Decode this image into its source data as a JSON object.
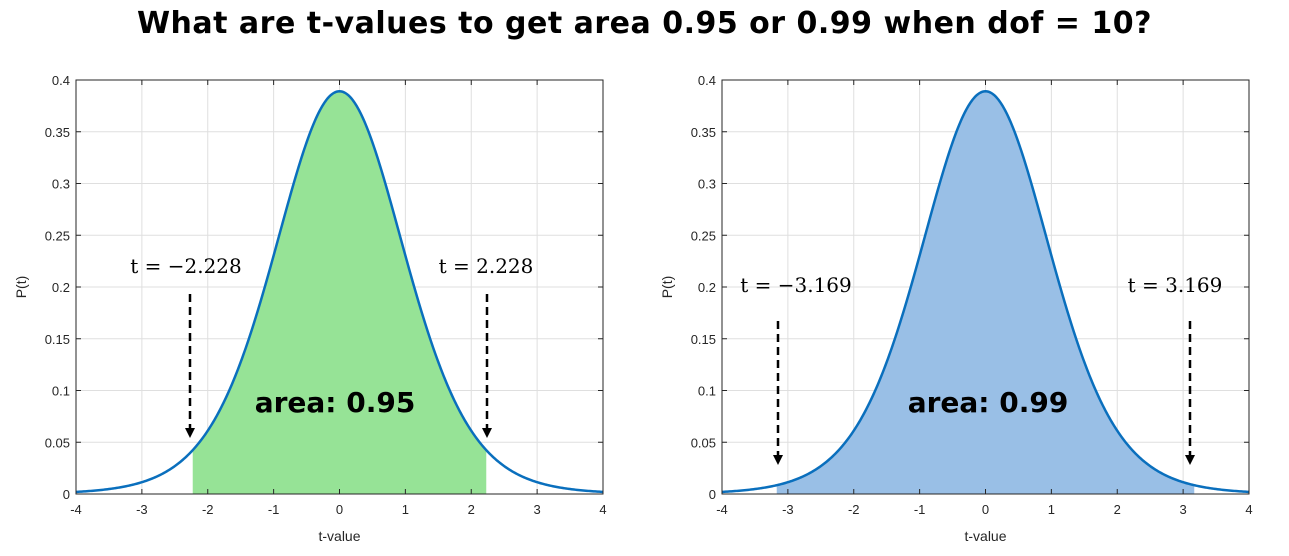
{
  "title": "What are t-values to get area 0.95 or 0.99 when dof = 10?",
  "chart_data": [
    {
      "type": "area",
      "dof": 10,
      "xlabel": "t-value",
      "ylabel": "P(t)",
      "xlim": [
        -4,
        4
      ],
      "ylim": [
        0,
        0.4
      ],
      "xticks": [
        -4,
        -3,
        -2,
        -1,
        0,
        1,
        2,
        3,
        4
      ],
      "yticks": [
        0,
        0.05,
        0.1,
        0.15,
        0.2,
        0.25,
        0.3,
        0.35,
        0.4
      ],
      "grid": true,
      "shade_range": [
        -2.228,
        2.228
      ],
      "shade_color": "#96e396",
      "curve_color": "#0a6fbd",
      "area_label": "area: 0.95",
      "left_annotation": "t = −2.228",
      "right_annotation": "t = 2.228"
    },
    {
      "type": "area",
      "dof": 10,
      "xlabel": "t-value",
      "ylabel": "P(t)",
      "xlim": [
        -4,
        4
      ],
      "ylim": [
        0,
        0.4
      ],
      "xticks": [
        -4,
        -3,
        -2,
        -1,
        0,
        1,
        2,
        3,
        4
      ],
      "yticks": [
        0,
        0.05,
        0.1,
        0.15,
        0.2,
        0.25,
        0.3,
        0.35,
        0.4
      ],
      "grid": true,
      "shade_range": [
        -3.169,
        3.169
      ],
      "shade_color": "#99bfe6",
      "curve_color": "#0a6fbd",
      "area_label": "area: 0.99",
      "left_annotation": "t = −3.169",
      "right_annotation": "t = 3.169"
    }
  ]
}
